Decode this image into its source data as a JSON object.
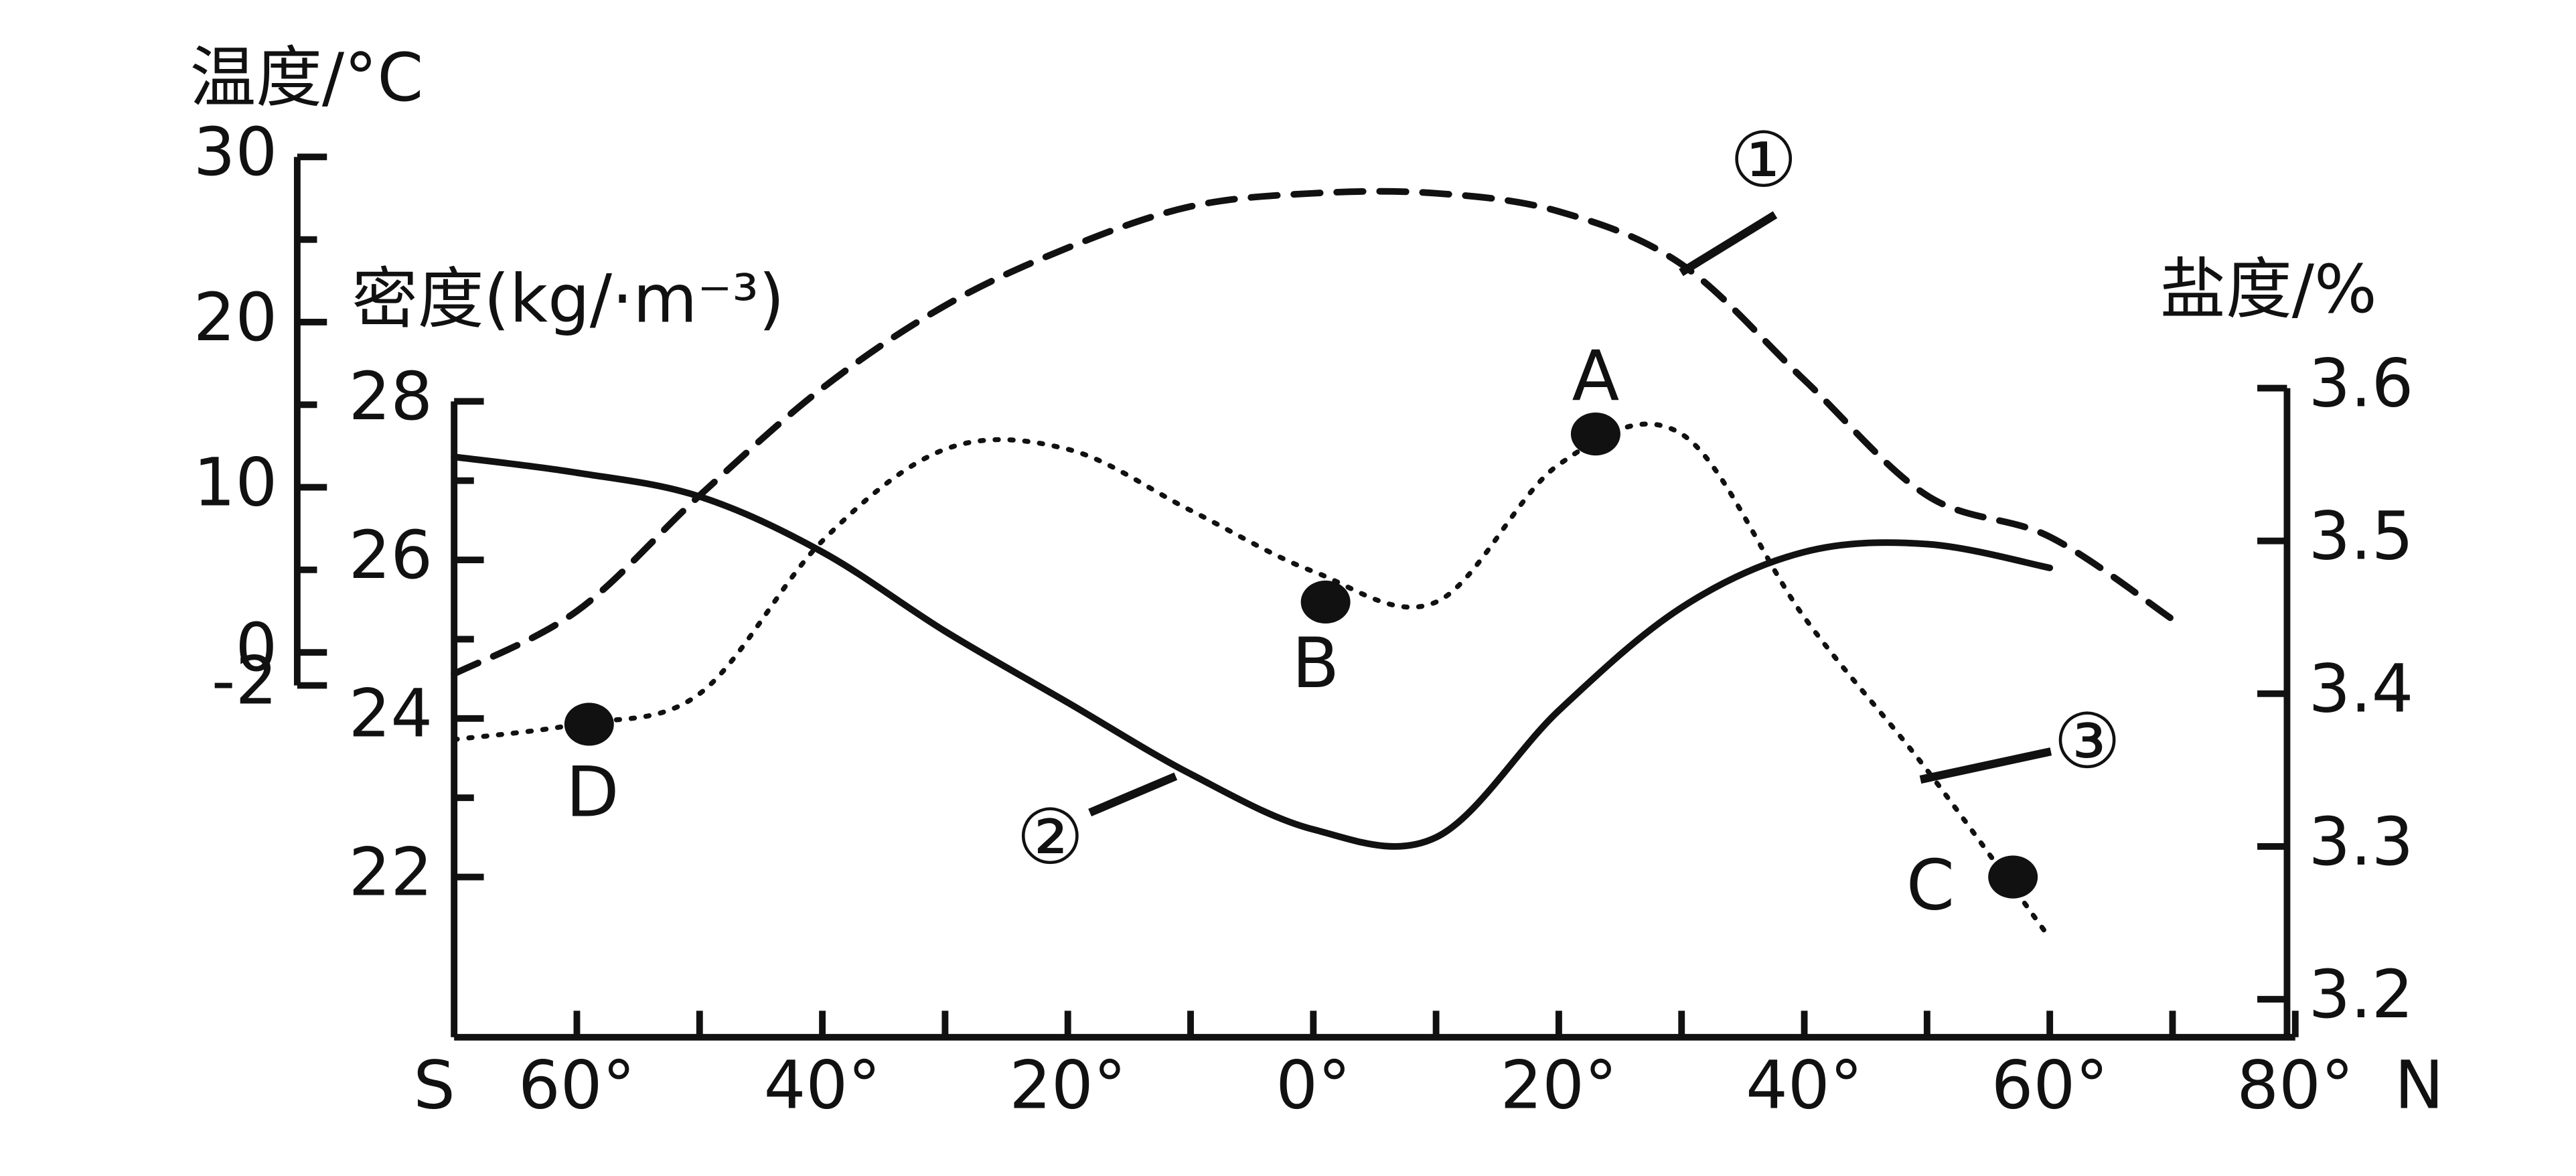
{
  "chart_data": {
    "type": "line",
    "x_labels_ends": [
      "S",
      "N"
    ],
    "xlim": [
      -70,
      80
    ],
    "xticks": [
      {
        "value": -60,
        "label": "60°"
      },
      {
        "value": -40,
        "label": "40°"
      },
      {
        "value": -20,
        "label": "20°"
      },
      {
        "value": 0,
        "label": "0°"
      },
      {
        "value": 20,
        "label": "20°"
      },
      {
        "value": 40,
        "label": "40°"
      },
      {
        "value": 60,
        "label": "60°"
      },
      {
        "value": 80,
        "label": "80°"
      }
    ],
    "xminorticks": [
      -50,
      -30,
      -10,
      10,
      30,
      50,
      70
    ],
    "axes": {
      "temperature": {
        "title": "温度/°C",
        "lim": [
          -2,
          30
        ],
        "ticks": [
          30,
          20,
          10,
          0,
          -2
        ],
        "minor_ticks": [
          25,
          15,
          5
        ]
      },
      "density": {
        "title": "密度(kg/·m⁻³)",
        "lim": [
          20,
          28
        ],
        "ticks": [
          28,
          26,
          24,
          22
        ],
        "minor_ticks": [
          27,
          25,
          23
        ]
      },
      "salinity": {
        "title": "盐度/%",
        "lim": [
          3.2,
          3.6
        ],
        "ticks": [
          3.6,
          3.5,
          3.4,
          3.3,
          3.2
        ]
      }
    },
    "series": [
      {
        "name": "①",
        "axis": "temperature",
        "line_style": "dashed",
        "color": "#111111",
        "x": [
          -70,
          -60,
          -50,
          -40,
          -30,
          -20,
          -10,
          0,
          10,
          20,
          30,
          40,
          50,
          60,
          70
        ],
        "values": [
          -1.3,
          2.5,
          9.5,
          16,
          21,
          24.5,
          27,
          27.8,
          27.8,
          26.7,
          23.5,
          16.5,
          9.5,
          7,
          2
        ]
      },
      {
        "name": "②",
        "axis": "density",
        "line_style": "solid",
        "color": "#111111",
        "x": [
          -70,
          -60,
          -50,
          -40,
          -30,
          -20,
          -10,
          0,
          10,
          20,
          30,
          40,
          50,
          60
        ],
        "values": [
          27.3,
          27.1,
          26.8,
          26.1,
          25.1,
          24.2,
          23.3,
          22.6,
          22.5,
          24.1,
          25.4,
          26.1,
          26.2,
          25.9
        ]
      },
      {
        "name": "③",
        "axis": "salinity",
        "line_style": "dotted",
        "color": "#111111",
        "x": [
          -70,
          -60,
          -50,
          -40,
          -30,
          -20,
          -10,
          0,
          10,
          20,
          30,
          40,
          50,
          60
        ],
        "values": [
          3.37,
          3.38,
          3.4,
          3.5,
          3.56,
          3.56,
          3.52,
          3.48,
          3.46,
          3.55,
          3.57,
          3.45,
          3.35,
          3.24
        ]
      }
    ],
    "points": [
      {
        "label": "A",
        "x": 23,
        "y": 3.57
      },
      {
        "label": "B",
        "x": 1,
        "y": 3.46
      },
      {
        "label": "C",
        "x": 57,
        "y": 3.28
      },
      {
        "label": "D",
        "x": -59,
        "y": 3.38
      }
    ],
    "points_axis": "salinity"
  }
}
